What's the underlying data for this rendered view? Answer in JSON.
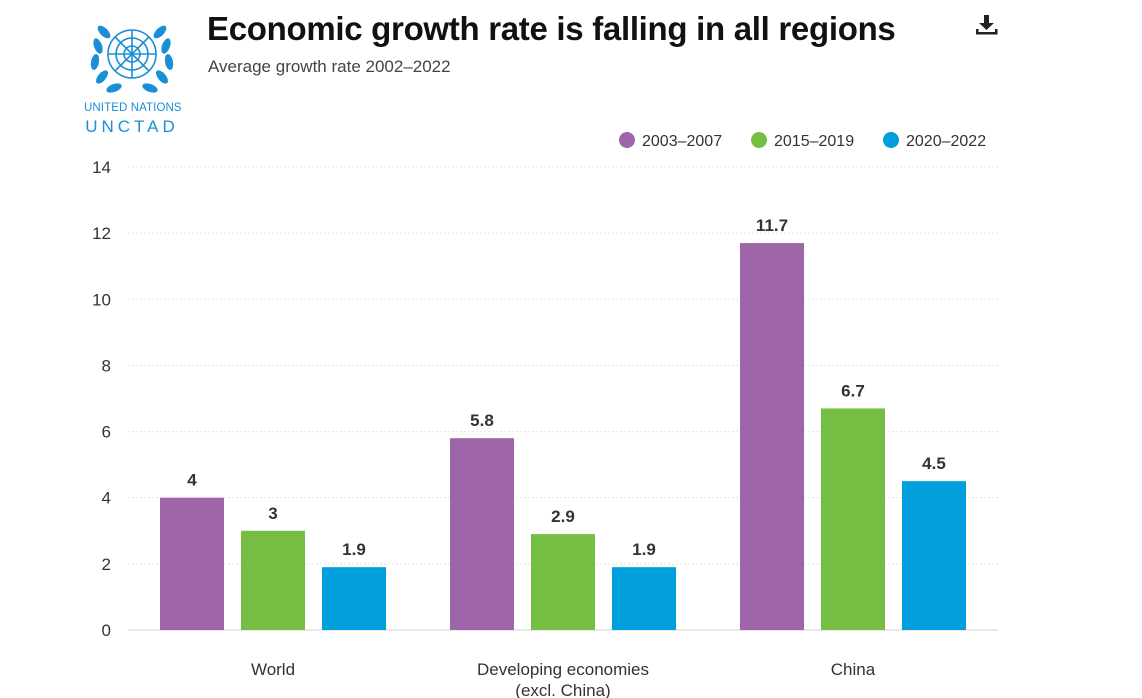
{
  "header": {
    "title": "Economic growth rate is falling in all regions",
    "subtitle": "Average growth rate 2002–2022",
    "download_icon": "download-icon"
  },
  "logo": {
    "line1": "UNITED NATIONS",
    "line2": "UNCTAD",
    "icon": "un-emblem-icon",
    "color": "#1a8fd6"
  },
  "chart_data": {
    "type": "bar",
    "categories": [
      "World",
      "Developing economies\n(excl. China)",
      "China"
    ],
    "series": [
      {
        "name": "2003–2007",
        "color": "#9e65a9",
        "values": [
          4,
          5.8,
          11.7
        ]
      },
      {
        "name": "2015–2019",
        "color": "#76be43",
        "values": [
          3,
          2.9,
          6.7
        ]
      },
      {
        "name": "2020–2022",
        "color": "#009edb",
        "values": [
          1.9,
          1.9,
          4.5
        ]
      }
    ],
    "value_labels": [
      [
        "4",
        "5.8",
        "11.7"
      ],
      [
        "3",
        "2.9",
        "6.7"
      ],
      [
        "1.9",
        "1.9",
        "4.5"
      ]
    ],
    "ylim": [
      0,
      14
    ],
    "yticks": [
      0,
      2,
      4,
      6,
      8,
      10,
      12,
      14
    ],
    "grid": true,
    "legend_position": "top-right",
    "xlabel": "",
    "ylabel": ""
  }
}
